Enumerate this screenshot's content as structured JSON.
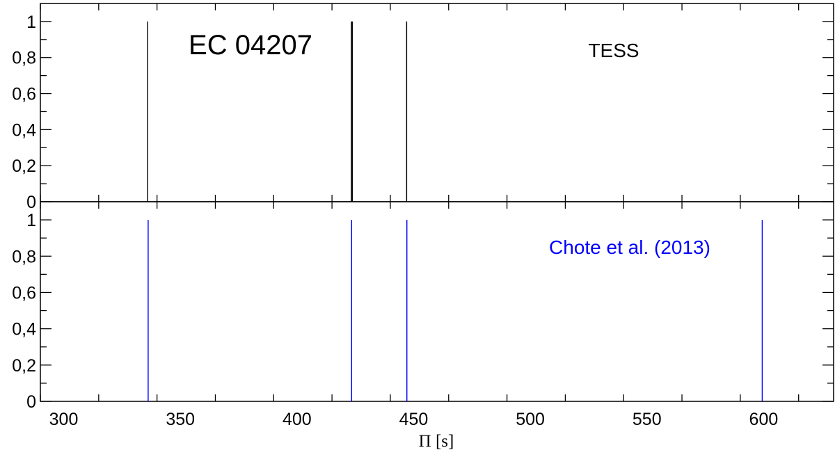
{
  "chart_data": {
    "type": "bar",
    "xlabel": "Π [s]",
    "xlim": [
      290,
      630
    ],
    "x_ticks": [
      300,
      350,
      400,
      450,
      500,
      550,
      600
    ],
    "x_tick_labels": [
      "300",
      "350",
      "400",
      "450",
      "500",
      "550",
      "600"
    ],
    "y_ticks": [
      0,
      0.2,
      0.4,
      0.6,
      0.8,
      1
    ],
    "y_tick_labels": [
      "0",
      "0,2",
      "0,4",
      "0,6",
      "0,8",
      "1"
    ],
    "ylim": [
      0,
      1.1
    ],
    "grid": false,
    "panels": [
      {
        "annotations": [
          {
            "text": "EC 04207",
            "color": "#000000"
          },
          {
            "text": "TESS",
            "color": "#000000"
          }
        ],
        "series": [
          {
            "color": "#000000",
            "x": [
              336.0,
              423.3,
              423.7,
              447.0
            ],
            "values": [
              1,
              1,
              1,
              1
            ]
          }
        ]
      },
      {
        "annotations": [
          {
            "text": "Chote et al. (2013)",
            "color": "#0000ff"
          }
        ],
        "series": [
          {
            "color": "#0000ff",
            "x": [
              336.2,
              423.4,
              447.1,
              599.4
            ],
            "values": [
              1,
              1,
              1,
              1
            ]
          }
        ]
      }
    ]
  }
}
